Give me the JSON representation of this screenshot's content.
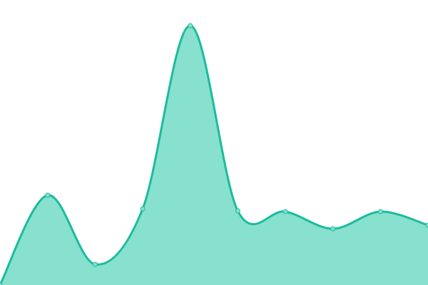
{
  "chart_data": {
    "type": "area",
    "title": "",
    "xlabel": "",
    "ylabel": "",
    "x": [
      0,
      1,
      2,
      3,
      4,
      5,
      6,
      7,
      8,
      9
    ],
    "series": [
      {
        "values": [
          0,
          126,
          29,
          107,
          364,
          104,
          103,
          79,
          103,
          84
        ]
      }
    ],
    "ylim": [
      0,
      400
    ],
    "grid": false,
    "axes_visible": false,
    "legend": "none",
    "curve": "smooth",
    "colors": {
      "line": "#1abc9c",
      "fill": "#88e0cf",
      "point": "#88e0cf"
    }
  }
}
